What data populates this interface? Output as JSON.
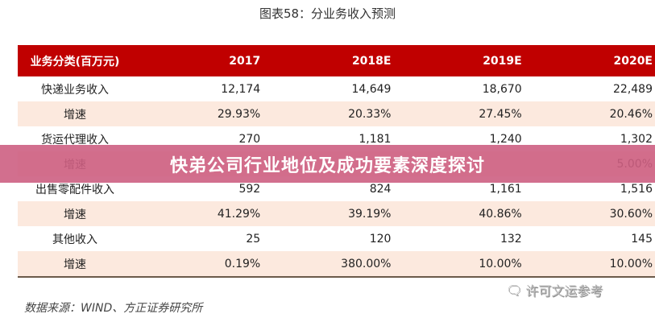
{
  "title": "图表58：分业务收入预测",
  "table": {
    "headers": [
      "业务分类(百万元)",
      "2017",
      "2018E",
      "2019E",
      "2020E"
    ],
    "rows": [
      [
        "快递业务收入",
        "12,174",
        "14,649",
        "18,670",
        "22,489"
      ],
      [
        "增速",
        "29.93%",
        "20.33%",
        "27.45%",
        "20.46%"
      ],
      [
        "货运代理收入",
        "270",
        "1,181",
        "1,240",
        "1,302"
      ],
      [
        "增速",
        "",
        "",
        "",
        "5.00%"
      ],
      [
        "出售零配件收入",
        "592",
        "824",
        "1,161",
        "1,516"
      ],
      [
        "增速",
        "41.29%",
        "39.19%",
        "40.86%",
        "30.60%"
      ],
      [
        "其他收入",
        "25",
        "120",
        "132",
        "145"
      ],
      [
        "增速",
        "0.19%",
        "380.00%",
        "10.00%",
        "10.00%"
      ]
    ]
  },
  "banner": "快弟公司行业地位及成功要素深度探讨",
  "watermark": "许可文运参考",
  "source": "数据来源：WIND、方正证券研究所"
}
